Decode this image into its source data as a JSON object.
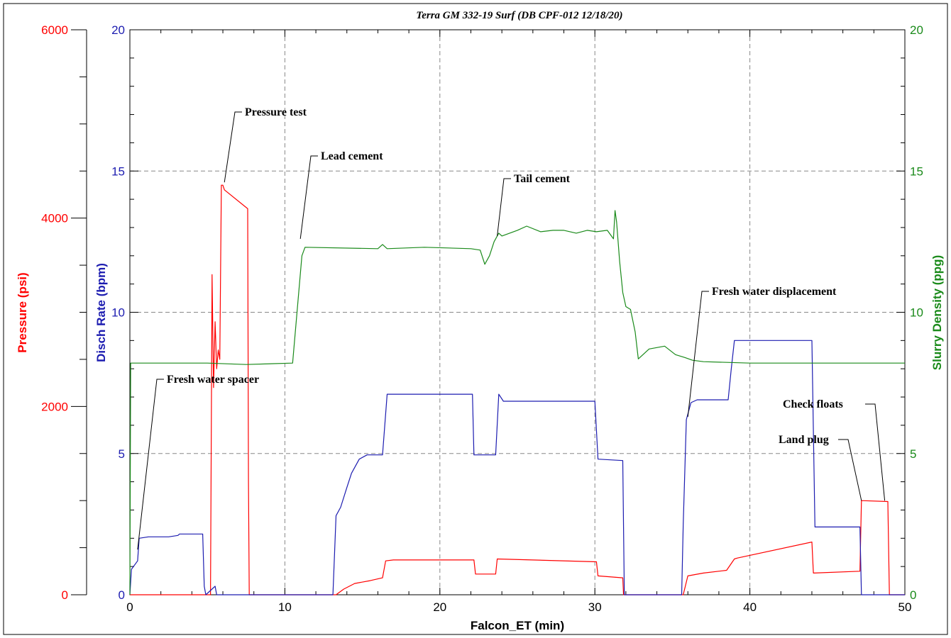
{
  "chart_data": {
    "type": "line",
    "title": "Terra GM 332-19 Surf (DB CPF-012 12/18/20)",
    "xlabel": "Falcon_ET (min)",
    "xlim": [
      0,
      50
    ],
    "x_ticks": [
      "0",
      "10",
      "20",
      "30",
      "40",
      "50"
    ],
    "grid": true,
    "colors": {
      "pressure": "#ff0000",
      "rate": "#1c1cb0",
      "density": "#1a8a1a",
      "grid": "#888888"
    },
    "axes": {
      "pressure": {
        "label": "Pressure (psi)",
        "side": "left-outer",
        "ylim": [
          0,
          6000
        ],
        "ticks": [
          "0",
          "2000",
          "4000",
          "6000"
        ]
      },
      "rate": {
        "label": "Disch Rate (bpm)",
        "side": "left-inner",
        "ylim": [
          0,
          20
        ],
        "ticks": [
          "0",
          "5",
          "10",
          "15",
          "20"
        ]
      },
      "density": {
        "label": "Slurry Density (ppg)",
        "side": "right",
        "ylim": [
          0,
          20
        ],
        "ticks": [
          "0",
          "5",
          "10",
          "15",
          "20"
        ]
      }
    },
    "series": [
      {
        "key": "pressure",
        "axis": "pressure",
        "x": [
          0,
          5.2,
          5.3,
          5.4,
          5.5,
          5.6,
          5.7,
          5.8,
          5.9,
          6.0,
          6.1,
          7.6,
          7.65,
          7.7,
          13.3,
          13.8,
          14.5,
          15.5,
          16.3,
          16.5,
          17.0,
          22.2,
          22.3,
          23.6,
          23.7,
          30.1,
          30.2,
          31.8,
          31.85,
          35.7,
          36.0,
          37.0,
          38.5,
          39.0,
          39.2,
          44.0,
          44.1,
          47.1,
          47.2,
          48.9,
          49.0,
          50
        ],
        "y": [
          0,
          0,
          3400,
          2200,
          2900,
          2400,
          2600,
          2500,
          4350,
          4350,
          4300,
          4100,
          1200,
          0,
          0,
          60,
          120,
          150,
          180,
          360,
          370,
          370,
          220,
          220,
          380,
          350,
          200,
          180,
          0,
          0,
          200,
          230,
          260,
          380,
          390,
          560,
          230,
          250,
          1000,
          990,
          0,
          0
        ]
      },
      {
        "key": "rate",
        "axis": "rate",
        "x": [
          0,
          0.1,
          0.5,
          0.6,
          1.2,
          2.5,
          3.1,
          3.2,
          4.7,
          4.8,
          4.9,
          5.5,
          5.6,
          13.1,
          13.3,
          13.6,
          14.0,
          14.3,
          14.8,
          15.3,
          16.3,
          16.6,
          22.1,
          22.2,
          23.6,
          23.8,
          24.1,
          24.4,
          30.0,
          30.2,
          31.8,
          31.9,
          35.6,
          35.7,
          35.9,
          36.2,
          36.6,
          37.1,
          38.6,
          38.8,
          39.0,
          44.0,
          44.2,
          47.1,
          47.2,
          50
        ],
        "y": [
          0,
          0.9,
          1.2,
          2.0,
          2.05,
          2.05,
          2.1,
          2.15,
          2.15,
          0.3,
          0,
          0.3,
          0,
          0,
          2.8,
          3.1,
          3.8,
          4.3,
          4.8,
          4.95,
          4.95,
          7.1,
          7.1,
          4.95,
          4.95,
          7.1,
          6.85,
          6.85,
          6.85,
          4.8,
          4.75,
          0,
          0,
          2.5,
          6.2,
          6.8,
          6.9,
          6.9,
          6.9,
          8.0,
          9.0,
          9.0,
          2.4,
          2.4,
          0,
          0
        ],
        "note": ""
      },
      {
        "key": "density",
        "axis": "density",
        "x": [
          0,
          0.05,
          0.3,
          5.0,
          7.5,
          10.5,
          11.1,
          11.3,
          16.0,
          16.3,
          16.6,
          19.0,
          22.0,
          22.6,
          22.9,
          23.2,
          23.5,
          23.8,
          24.0,
          25.0,
          25.6,
          26.5,
          27.3,
          28.0,
          28.8,
          29.5,
          30.1,
          30.8,
          31.2,
          31.3,
          31.4,
          31.6,
          31.8,
          32.0,
          32.3,
          32.6,
          32.8,
          33.5,
          34.5,
          35.2,
          35.8,
          36.3,
          37.0,
          40.0,
          45.0,
          50
        ],
        "y": [
          0,
          8.2,
          8.2,
          8.2,
          8.15,
          8.2,
          12.0,
          12.3,
          12.25,
          12.4,
          12.25,
          12.3,
          12.25,
          12.2,
          11.7,
          12.0,
          12.5,
          12.8,
          12.7,
          12.9,
          13.05,
          12.85,
          12.9,
          12.9,
          12.8,
          12.9,
          12.85,
          12.9,
          12.6,
          13.6,
          13.2,
          11.8,
          10.7,
          10.2,
          10.1,
          9.3,
          8.35,
          8.7,
          8.8,
          8.5,
          8.4,
          8.3,
          8.25,
          8.2,
          8.2,
          8.2
        ]
      }
    ],
    "annotations": [
      {
        "text": "Pressure test",
        "x": 6.1,
        "y_axis": "pressure",
        "y": 4380
      },
      {
        "text": "Lead cement",
        "x": 11.0,
        "y_axis": "density",
        "y": 12.6
      },
      {
        "text": "Tail cement",
        "x": 23.7,
        "y_axis": "density",
        "y": 12.7
      },
      {
        "text": "Fresh water spacer",
        "x": 0.5,
        "y_axis": "rate",
        "y": 1.6
      },
      {
        "text": "Fresh water displacement",
        "x": 36.0,
        "y_axis": "rate",
        "y": 6.3
      },
      {
        "text": "Check floats",
        "x": 48.7,
        "y_axis": "pressure",
        "y": 1000
      },
      {
        "text": "Land plug",
        "x": 47.2,
        "y_axis": "pressure",
        "y": 1000
      }
    ]
  }
}
